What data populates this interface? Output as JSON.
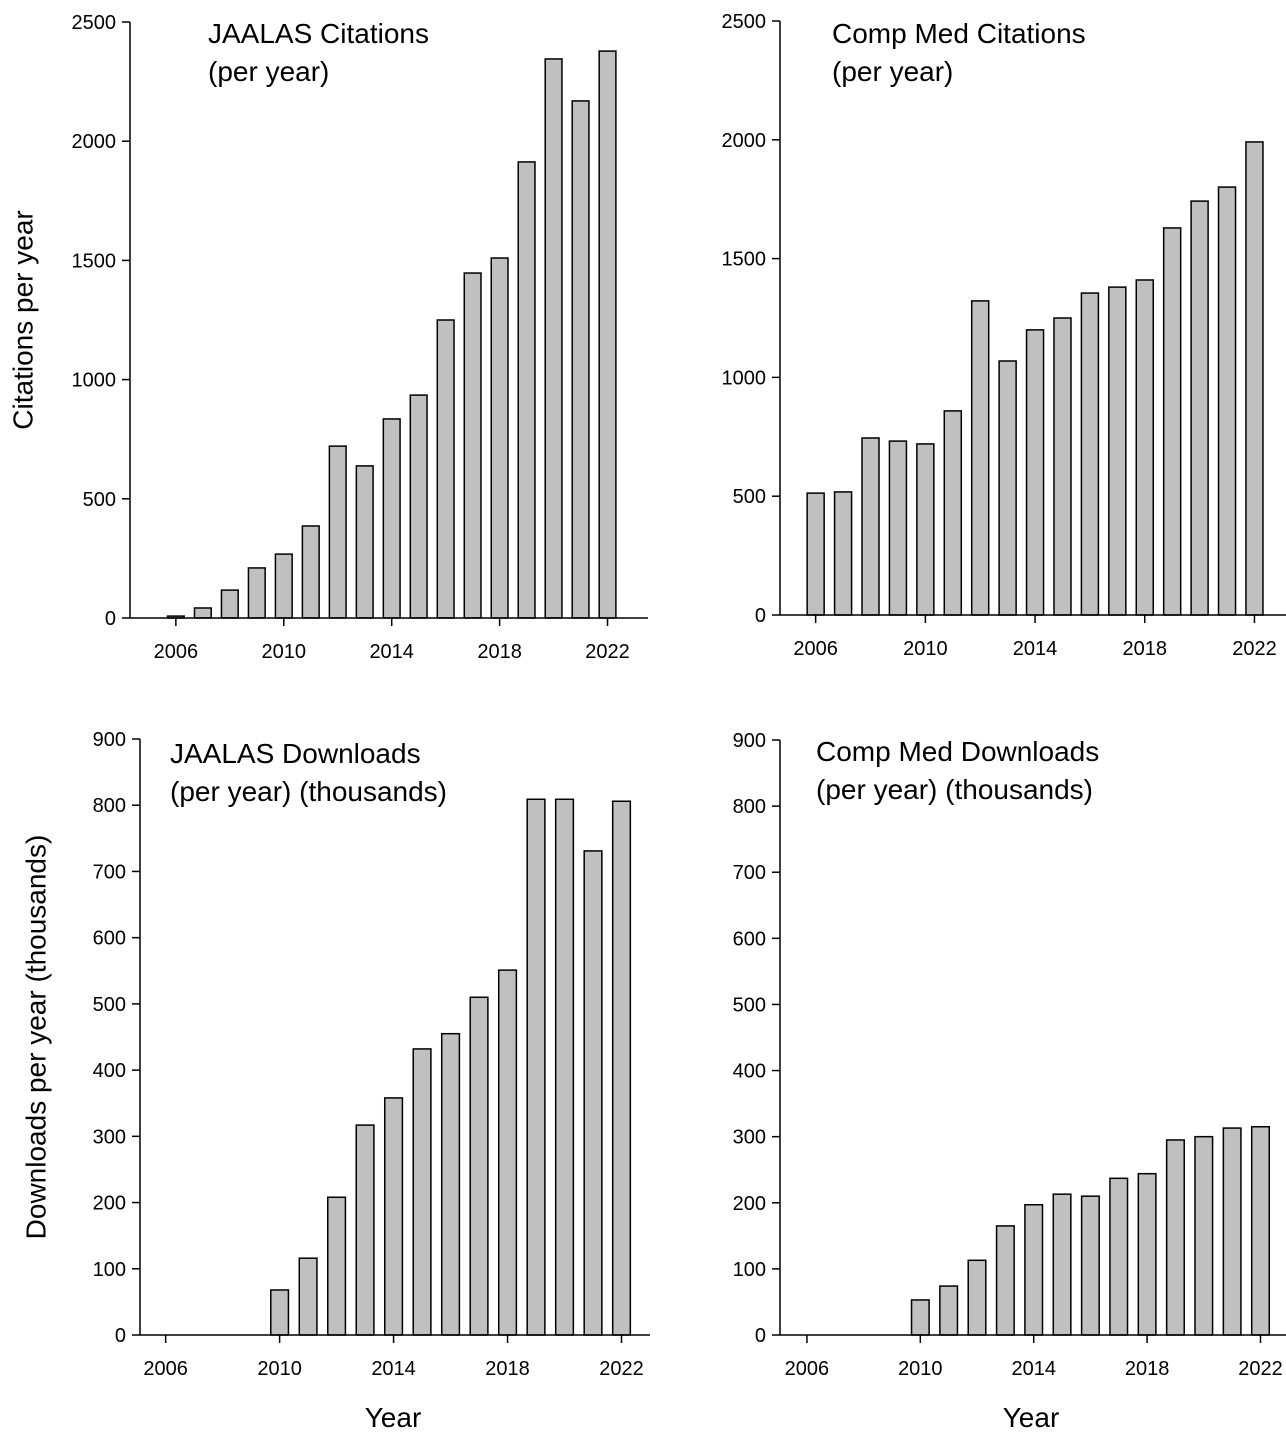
{
  "chart_data": [
    {
      "type": "bar",
      "title": "JAALAS Citations",
      "subtitle": "(per year)",
      "y_label": "Citations per year",
      "x": [
        2006,
        2007,
        2008,
        2009,
        2010,
        2011,
        2012,
        2013,
        2014,
        2015,
        2016,
        2017,
        2018,
        2019,
        2020,
        2021,
        2022
      ],
      "values": [
        8,
        42,
        117,
        210,
        268,
        386,
        721,
        638,
        835,
        935,
        1250,
        1447,
        1510,
        1913,
        2345,
        2169,
        2378
      ],
      "color": "#c0c0c0",
      "xlim": [
        2004.3,
        2023.5
      ],
      "xticks": [
        2006,
        2010,
        2014,
        2018,
        2022
      ],
      "ylim": [
        0,
        2500
      ],
      "yticks": [
        0,
        500,
        1000,
        1500,
        2000,
        2500
      ]
    },
    {
      "type": "bar",
      "title": "Comp Med Citations",
      "subtitle": "(per year)",
      "x": [
        2006,
        2007,
        2008,
        2009,
        2010,
        2011,
        2012,
        2013,
        2014,
        2015,
        2016,
        2017,
        2018,
        2019,
        2020,
        2021,
        2022
      ],
      "values": [
        513,
        518,
        745,
        732,
        720,
        859,
        1322,
        1069,
        1200,
        1250,
        1355,
        1380,
        1410,
        1629,
        1742,
        1801,
        1991
      ],
      "color": "#c0c0c0",
      "xlim": [
        2004.7,
        2023.15
      ],
      "xticks": [
        2006,
        2010,
        2014,
        2018,
        2022
      ],
      "ylim": [
        0,
        2500
      ],
      "yticks": [
        0,
        500,
        1000,
        1500,
        2000,
        2500
      ]
    },
    {
      "type": "bar",
      "title": "JAALAS Downloads",
      "subtitle": "(per year) (thousands)",
      "y_label": "Downloads per year (thousands)",
      "x_label": "Year",
      "x": [
        2010,
        2011,
        2012,
        2013,
        2014,
        2015,
        2016,
        2017,
        2018,
        2019,
        2020,
        2021,
        2022
      ],
      "values": [
        68,
        116,
        208,
        317,
        358,
        432,
        455,
        510,
        551,
        809,
        809,
        731,
        806
      ],
      "color": "#c0c0c0",
      "xlim": [
        2005.1,
        2023.0
      ],
      "xticks": [
        2006,
        2010,
        2014,
        2018,
        2022
      ],
      "ylim": [
        0,
        900
      ],
      "yticks": [
        0,
        100,
        200,
        300,
        400,
        500,
        600,
        700,
        800,
        900
      ]
    },
    {
      "type": "bar",
      "title": "Comp Med Downloads",
      "subtitle": "(per year) (thousands)",
      "x_label": "Year",
      "x": [
        2010,
        2011,
        2012,
        2013,
        2014,
        2015,
        2016,
        2017,
        2018,
        2019,
        2020,
        2021,
        2022
      ],
      "values": [
        53,
        74,
        113,
        165,
        197,
        213,
        210,
        237,
        244,
        295,
        300,
        313,
        315
      ],
      "color": "#c0c0c0",
      "xlim": [
        2005.05,
        2022.9
      ],
      "xticks": [
        2006,
        2010,
        2014,
        2018,
        2022
      ],
      "ylim": [
        0,
        900
      ],
      "yticks": [
        0,
        100,
        200,
        300,
        400,
        500,
        600,
        700,
        800,
        900
      ]
    }
  ]
}
